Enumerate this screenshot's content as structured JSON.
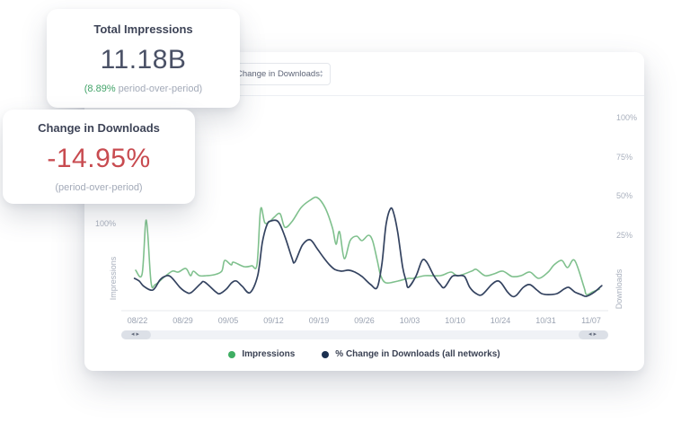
{
  "colors": {
    "accent_green": "#41a368",
    "accent_red": "#c84b50",
    "line_green": "#7fc08d",
    "line_navy": "#344360",
    "legend_green_dot": "#3fae63",
    "legend_navy_dot": "#1c3050"
  },
  "cards": {
    "total_impressions": {
      "title": "Total Impressions",
      "value": "11.18B",
      "delta": "(8.89%",
      "period_label": " period-over-period)"
    },
    "change_in_downloads": {
      "title": "Change in Downloads",
      "value": "-14.95%",
      "period_label": "(period-over-period)"
    }
  },
  "panel": {
    "dropdown": {
      "value": "Change in Downloads",
      "icon": "up-down-caret-icon"
    },
    "left_axis": {
      "name": "Impressions",
      "ticks": [
        "100%"
      ]
    },
    "right_axis": {
      "name": "Downloads",
      "ticks": [
        "100%",
        "75%",
        "50%",
        "25%"
      ]
    },
    "scrollbar": {
      "left_arrows": "◂▸",
      "right_arrows": "◂▸"
    },
    "legend": [
      {
        "label": "Impressions",
        "color": "#3fae63"
      },
      {
        "label": "% Change in Downloads (all networks)",
        "color": "#1c3050"
      }
    ]
  },
  "chart_data": {
    "type": "line",
    "x_unit": "days since 08/22",
    "x_tick_labels": [
      "08/22",
      "08/29",
      "09/05",
      "09/12",
      "09/19",
      "09/26",
      "10/03",
      "10/10",
      "10/24",
      "10/31",
      "11/07"
    ],
    "left_axis": {
      "label": "Impressions",
      "ticks_pct": [
        100
      ]
    },
    "right_axis": {
      "label": "Downloads",
      "ticks_pct": [
        100,
        75,
        50,
        25
      ]
    },
    "grid": false,
    "legend_position": "bottom",
    "series": [
      {
        "name": "Impressions",
        "axis": "left",
        "color": "#7fc08d",
        "points": [
          [
            -0.3,
            45.9
          ],
          [
            0.8,
            41.8
          ],
          [
            1.5,
            103
          ],
          [
            2.3,
            32.6
          ],
          [
            3.0,
            29.6
          ],
          [
            4.5,
            38
          ],
          [
            5.9,
            44.9
          ],
          [
            6.9,
            43.9
          ],
          [
            8.2,
            48
          ],
          [
            9.0,
            39.8
          ],
          [
            9.5,
            44.9
          ],
          [
            10.5,
            39.8
          ],
          [
            11.7,
            39.8
          ],
          [
            13.0,
            40.8
          ],
          [
            14.3,
            44.9
          ],
          [
            14.8,
            57.1
          ],
          [
            15.9,
            52
          ],
          [
            16.3,
            55.1
          ],
          [
            18.1,
            50
          ],
          [
            19.4,
            51
          ],
          [
            20.3,
            53
          ],
          [
            20.9,
            115.3
          ],
          [
            21.6,
            100
          ],
          [
            22.4,
            101
          ],
          [
            23.2,
            106.1
          ],
          [
            24.2,
            110.2
          ],
          [
            25.0,
            94.9
          ],
          [
            26.2,
            101
          ],
          [
            27.8,
            117.3
          ],
          [
            29.3,
            125.5
          ],
          [
            30.5,
            128.6
          ],
          [
            31.9,
            116.3
          ],
          [
            33.1,
            93.9
          ],
          [
            33.7,
            75.5
          ],
          [
            34.3,
            89.8
          ],
          [
            35.1,
            59.2
          ],
          [
            36.1,
            79.6
          ],
          [
            37.2,
            84.7
          ],
          [
            38.1,
            79.6
          ],
          [
            39.2,
            85.7
          ],
          [
            39.9,
            79.6
          ],
          [
            40.7,
            57.1
          ],
          [
            41.3,
            39.8
          ],
          [
            42.2,
            31.6
          ],
          [
            44.2,
            33.7
          ],
          [
            46.0,
            36.7
          ],
          [
            46.8,
            36.7
          ],
          [
            48.8,
            39.8
          ],
          [
            51.4,
            39.8
          ],
          [
            53.2,
            43.9
          ],
          [
            54.4,
            39.8
          ],
          [
            56.7,
            44.9
          ],
          [
            57.5,
            46.9
          ],
          [
            59.0,
            39.8
          ],
          [
            60.5,
            41.8
          ],
          [
            62.0,
            44.9
          ],
          [
            63.6,
            38.8
          ],
          [
            65.1,
            39.8
          ],
          [
            66.6,
            43.9
          ],
          [
            68.1,
            36.7
          ],
          [
            69.7,
            43.9
          ],
          [
            70.7,
            52
          ],
          [
            72.0,
            57.1
          ],
          [
            73.0,
            49
          ],
          [
            74.2,
            57.1
          ],
          [
            75.8,
            26.5
          ],
          [
            76.2,
            18.4
          ],
          [
            77.3,
            21.4
          ],
          [
            78.4,
            24.5
          ]
        ]
      },
      {
        "name": "% Change in Downloads (all networks)",
        "axis": "right",
        "color": "#344360",
        "points": [
          [
            -0.5,
            -2.3
          ],
          [
            0.3,
            -4
          ],
          [
            1.1,
            -7.4
          ],
          [
            2.6,
            -9.7
          ],
          [
            3.8,
            -3.4
          ],
          [
            4.6,
            -1.1
          ],
          [
            5.6,
            -1.1
          ],
          [
            7.2,
            -8
          ],
          [
            8.2,
            -10.9
          ],
          [
            9.1,
            -11.4
          ],
          [
            10.7,
            -5.7
          ],
          [
            11.4,
            -4.6
          ],
          [
            13.3,
            -10.9
          ],
          [
            14.0,
            -12
          ],
          [
            15.1,
            -9.1
          ],
          [
            16.0,
            -5.1
          ],
          [
            16.8,
            -4
          ],
          [
            17.8,
            -7.4
          ],
          [
            19.1,
            -11.4
          ],
          [
            20.4,
            -0.6
          ],
          [
            21.2,
            20.6
          ],
          [
            22.0,
            32
          ],
          [
            22.7,
            34.3
          ],
          [
            23.9,
            33.7
          ],
          [
            25.0,
            24.6
          ],
          [
            26.2,
            10.9
          ],
          [
            26.7,
            8
          ],
          [
            28.0,
            18.9
          ],
          [
            29.3,
            22.3
          ],
          [
            30.5,
            16.6
          ],
          [
            31.6,
            10.9
          ],
          [
            32.6,
            6.3
          ],
          [
            33.5,
            3.4
          ],
          [
            34.6,
            2.3
          ],
          [
            35.8,
            2.9
          ],
          [
            36.9,
            1.7
          ],
          [
            38.1,
            -1.1
          ],
          [
            39.6,
            -6.3
          ],
          [
            40.7,
            -8
          ],
          [
            41.5,
            7.4
          ],
          [
            42.2,
            32
          ],
          [
            43.0,
            42.3
          ],
          [
            43.6,
            37.7
          ],
          [
            44.2,
            26.3
          ],
          [
            45.0,
            5.1
          ],
          [
            45.6,
            -4
          ],
          [
            46.0,
            -8
          ],
          [
            47.3,
            -0.6
          ],
          [
            48.3,
            9.1
          ],
          [
            49.1,
            8
          ],
          [
            50.3,
            -0.6
          ],
          [
            51.4,
            -6.3
          ],
          [
            52.1,
            -8
          ],
          [
            53.4,
            -1.1
          ],
          [
            54.4,
            -0.6
          ],
          [
            55.5,
            -1.1
          ],
          [
            56.4,
            -8
          ],
          [
            57.5,
            -12
          ],
          [
            58.5,
            -12.6
          ],
          [
            60.1,
            -6.3
          ],
          [
            61.0,
            -4
          ],
          [
            61.7,
            -5.1
          ],
          [
            62.8,
            -10.9
          ],
          [
            63.6,
            -13.7
          ],
          [
            64.3,
            -13.1
          ],
          [
            65.5,
            -8
          ],
          [
            66.6,
            -6.3
          ],
          [
            67.8,
            -9.7
          ],
          [
            68.6,
            -12
          ],
          [
            69.7,
            -12.6
          ],
          [
            71.2,
            -12
          ],
          [
            72.4,
            -9.1
          ],
          [
            73.2,
            -8
          ],
          [
            74.2,
            -10.9
          ],
          [
            75.3,
            -12.6
          ],
          [
            76.2,
            -13.7
          ],
          [
            77.6,
            -10.9
          ],
          [
            78.8,
            -6.9
          ]
        ]
      }
    ]
  }
}
